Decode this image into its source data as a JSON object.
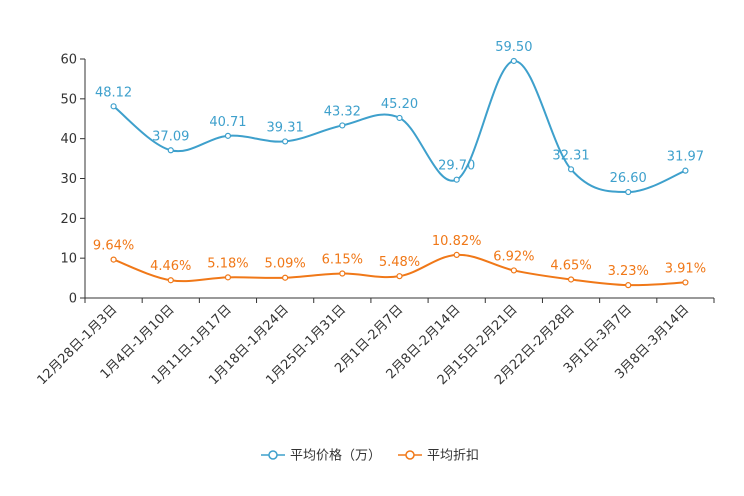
{
  "chart_data": {
    "type": "line",
    "title": "",
    "xlabel": "",
    "ylabel": "",
    "ylim": [
      0,
      60
    ],
    "yticks": [
      0,
      10,
      20,
      30,
      40,
      50,
      60
    ],
    "grid": false,
    "legend_position": "bottom-center",
    "categories": [
      "12月28日-1月3日",
      "1月4日-1月10日",
      "1月11日-1月17日",
      "1月18日-1月24日",
      "1月25日-1月31日",
      "2月1日-2月7日",
      "2月8日-2月14日",
      "2月15日-2月21日",
      "2月22日-2月28日",
      "3月1日-3月7日",
      "3月8日-3月14日"
    ],
    "series": [
      {
        "name": "平均价格（万）",
        "color": "#3ea0cc",
        "values": [
          48.12,
          37.09,
          40.71,
          39.31,
          43.32,
          45.2,
          29.7,
          59.5,
          32.31,
          26.6,
          31.97
        ],
        "labels": [
          "48.12",
          "37.09",
          "40.71",
          "39.31",
          "43.32",
          "45.20",
          "29.70",
          "59.50",
          "32.31",
          "26.60",
          "31.97"
        ]
      },
      {
        "name": "平均折扣",
        "color": "#f07818",
        "values": [
          9.64,
          4.46,
          5.18,
          5.09,
          6.15,
          5.48,
          10.82,
          6.92,
          4.65,
          3.23,
          3.91
        ],
        "labels": [
          "9.64%",
          "4.46%",
          "5.18%",
          "5.09%",
          "6.15%",
          "5.48%",
          "10.82%",
          "6.92%",
          "4.65%",
          "3.23%",
          "3.91%"
        ]
      }
    ]
  }
}
